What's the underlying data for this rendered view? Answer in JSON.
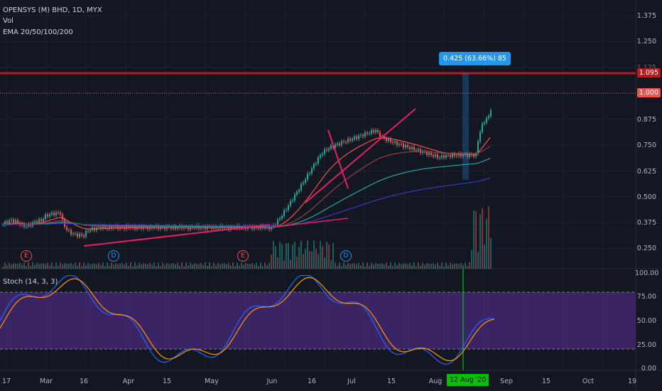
{
  "legend": {
    "symbol": "OPENSYS (M) BHD, 1D, MYX",
    "vol": "Vol",
    "ema": "EMA 20/50/100/200",
    "stoch": "Stoch (14, 3, 3)"
  },
  "price_axis": [
    "1.375",
    "1.250",
    "1.125",
    "1.000",
    "0.875",
    "0.750",
    "0.625",
    "0.500",
    "0.375",
    "0.250"
  ],
  "price_tags": {
    "resistance": "1.095",
    "current": "1.000"
  },
  "stoch_axis": [
    "100.00",
    "75.00",
    "50.00",
    "25.00",
    "0.00"
  ],
  "x_axis": [
    "17",
    "Mar",
    "16",
    "Apr",
    "15",
    "May",
    "Jun",
    "16",
    "Jul",
    "15",
    "Aug",
    "Sep",
    "15",
    "Oct",
    "19"
  ],
  "measure_label": "0.425 (63.66%) 85",
  "crosshair_date": "12 Aug '20",
  "event_markers": [
    "E",
    "D",
    "E",
    "D"
  ],
  "colors": {
    "bg": "#131722",
    "up": "#26a69a",
    "down": "#ef5350",
    "resistance": "#b71c1c",
    "stoch_band": "#4a2a7a"
  }
}
